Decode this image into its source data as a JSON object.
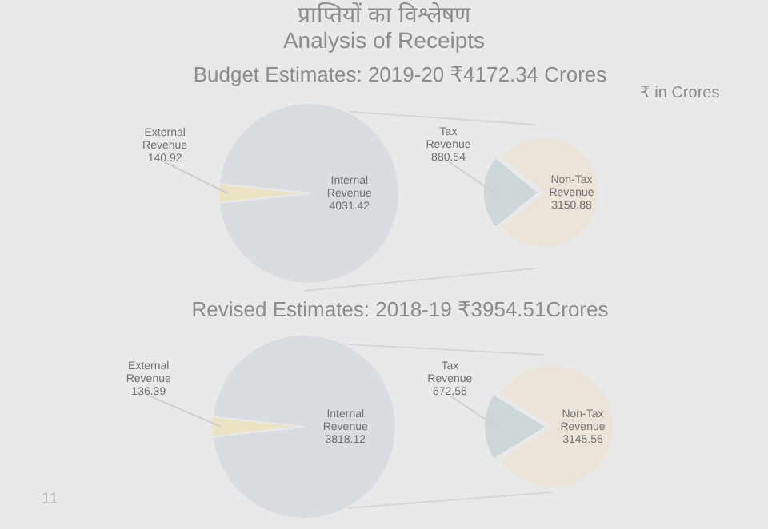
{
  "chart_data": [
    {
      "type": "pie",
      "title": "प्राप्तियों का विश्लेषण\nAnalysis of Receipts",
      "subtitle": "Budget Estimates: 2019-20 ₹4172.34 Crores",
      "annotations": [
        "₹ in Crores",
        "11"
      ],
      "categories": [
        "External Revenue",
        "Internal Revenue"
      ],
      "values": [
        140.92,
        4031.42
      ],
      "colors": [
        "#ece3c4",
        "#d9dde2"
      ],
      "data_labels": true,
      "legend": false
    },
    {
      "type": "pie",
      "categories": [
        "Tax Revenue",
        "Non-Tax Revenue"
      ],
      "values": [
        880.54,
        3150.88
      ],
      "colors": [
        "#cdd6d9",
        "#ece4d9"
      ],
      "data_labels": true,
      "legend": false
    },
    {
      "type": "pie",
      "subtitle": "Revised Estimates:  2018-19 ₹3954.51Crores",
      "categories": [
        "External Revenue",
        "Internal Revenue"
      ],
      "values": [
        136.39,
        3818.12
      ],
      "colors": [
        "#ece3c4",
        "#d9dde2"
      ],
      "data_labels": true,
      "legend": false
    },
    {
      "type": "pie",
      "categories": [
        "Tax Revenue",
        "Non-Tax Revenue"
      ],
      "values": [
        672.56,
        3145.56
      ],
      "colors": [
        "#cdd6d9",
        "#ece4d9"
      ],
      "data_labels": true,
      "legend": false
    }
  ]
}
